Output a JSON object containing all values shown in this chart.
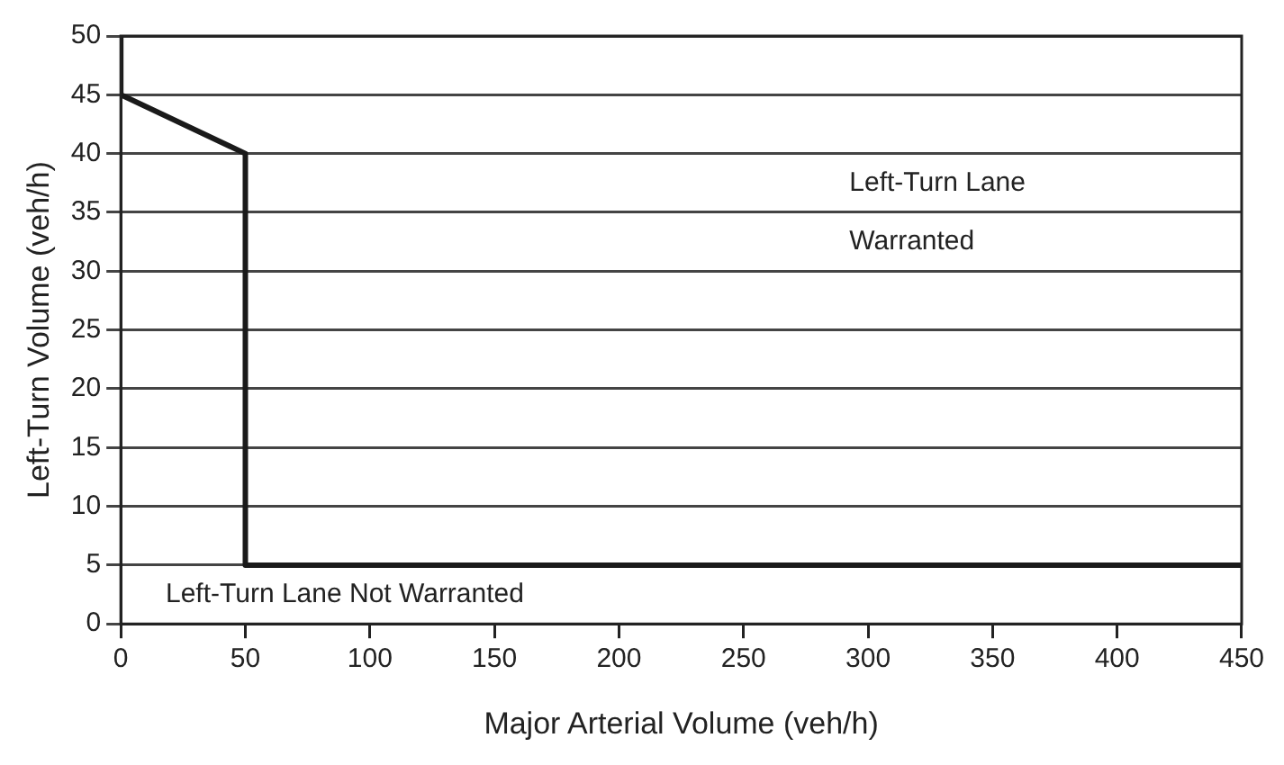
{
  "chart_data": {
    "type": "line",
    "xlabel": "Major Arterial Volume (veh/h)",
    "ylabel": "Left-Turn Volume (veh/h)",
    "series": [
      {
        "color": "#1a1a1a",
        "x": [
          0,
          0,
          50,
          50,
          450
        ],
        "values": [
          50,
          45,
          40,
          5,
          5
        ]
      }
    ],
    "xlim": [
      0,
      450
    ],
    "xticks": [
      0,
      50,
      100,
      150,
      200,
      250,
      300,
      350,
      400,
      450
    ],
    "ylim": [
      0,
      50
    ],
    "yticks": [
      0,
      5,
      10,
      15,
      20,
      25,
      30,
      35,
      40,
      45,
      50
    ],
    "grid": "y",
    "legend": false,
    "marker": "none",
    "line_style": "solid",
    "annotations": [
      "Left-Turn Lane\nWarranted",
      "Left-Turn Lane Not Warranted"
    ]
  }
}
